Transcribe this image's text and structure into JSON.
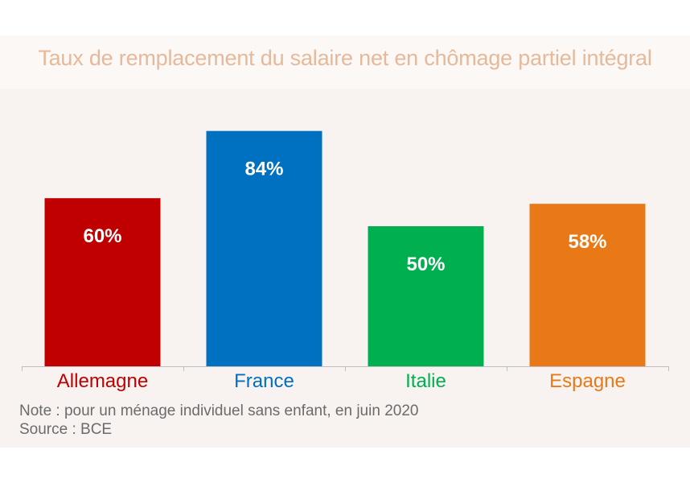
{
  "chart_data": {
    "type": "bar",
    "title": "Taux de remplacement du salaire net en chômage partiel intégral",
    "categories": [
      "Allemagne",
      "France",
      "Italie",
      "Espagne"
    ],
    "values": [
      60,
      84,
      50,
      58
    ],
    "value_labels": [
      "60%",
      "84%",
      "50%",
      "58%"
    ],
    "colors": [
      "#c00000",
      "#0070c0",
      "#00b050",
      "#e97917"
    ],
    "xlabel": "",
    "ylabel": "",
    "ylim": [
      0,
      100
    ],
    "grid": false
  },
  "footer": {
    "note": "Note : pour un ménage individuel sans enfant, en juin 2020",
    "source": "Source : BCE"
  }
}
